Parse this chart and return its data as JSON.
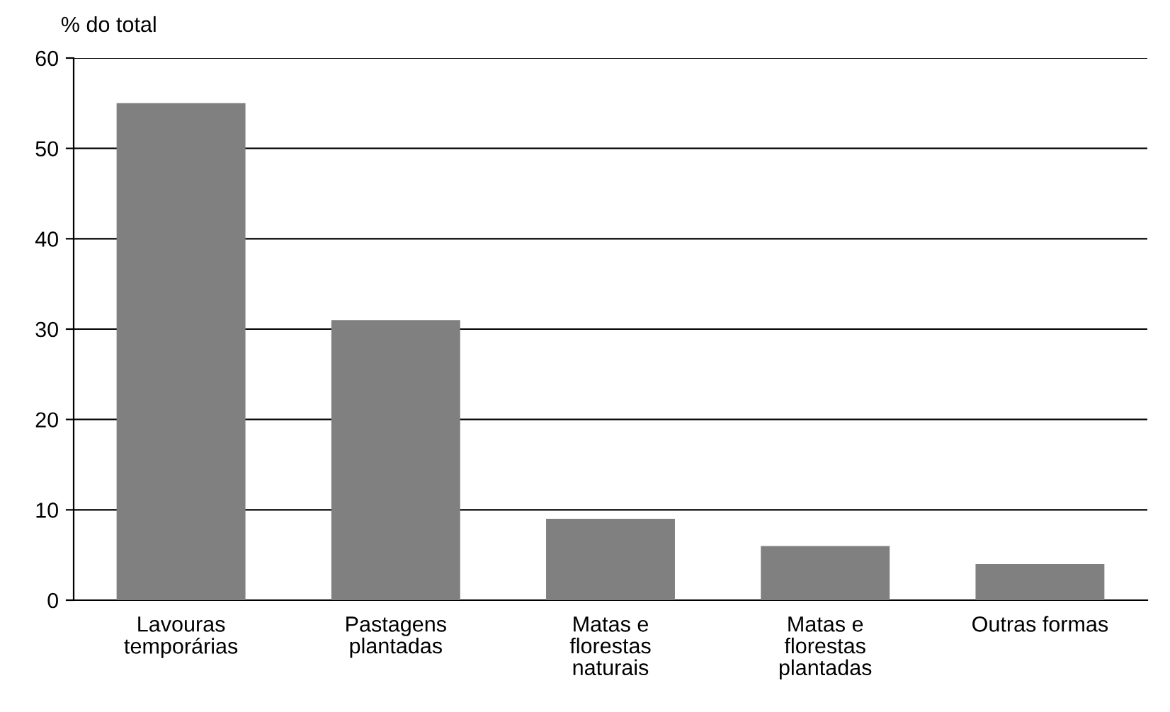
{
  "chart_data": {
    "type": "bar",
    "ylabel": "% do total",
    "categories": [
      "Lavouras\ntemporárias",
      "Pastagens\nplantadas",
      "Matas e\nflorestas\nnaturais",
      "Matas e\nflorestas\nplantadas",
      "Outras formas"
    ],
    "values": [
      55,
      31,
      9,
      6,
      4
    ],
    "color": "#808080",
    "ylim": [
      0,
      60
    ],
    "yticks": [
      0,
      10,
      20,
      30,
      40,
      50,
      60
    ],
    "grid": "y"
  }
}
